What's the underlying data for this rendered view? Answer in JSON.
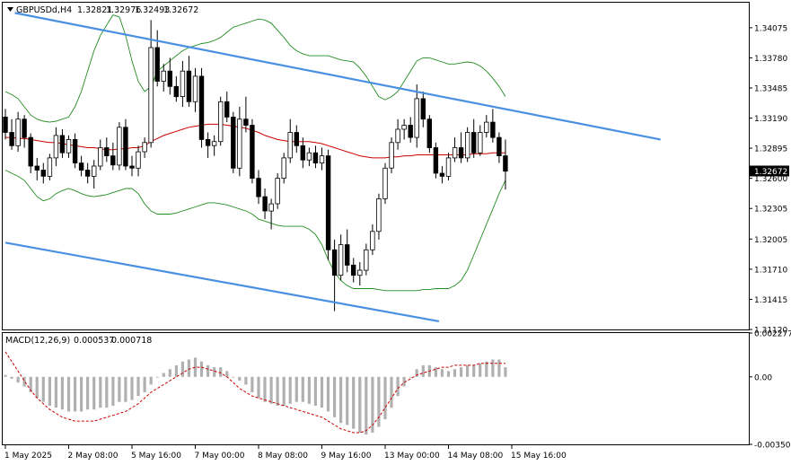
{
  "header": {
    "symbol": "GBPUSDd,H4",
    "open": "1.32821",
    "high": "1.32976",
    "low": "1.32493",
    "close": "1.32672"
  },
  "macd": {
    "label": "MACD(12,26,9)",
    "main": "0.000537",
    "signal": "0.000718"
  },
  "current_price_label": "1.32672",
  "chart_data": [
    {
      "type": "candlestick",
      "title": "GBPUSDd,H4",
      "price_axis_ticks": [
        1.34075,
        1.3378,
        1.33485,
        1.3319,
        1.32895,
        1.326,
        1.32305,
        1.32005,
        1.3171,
        1.31415,
        1.3112
      ],
      "price_axis_labels": [
        "1.34075",
        "1.33780",
        "1.33485",
        "1.33190",
        "1.32895",
        "1.32600",
        "1.32305",
        "1.32005",
        "1.31710",
        "1.31415",
        "1.31120"
      ],
      "ylim": [
        1.3112,
        1.3432
      ],
      "time_labels": [
        "1 May 2025",
        "2 May 08:00",
        "5 May 16:00",
        "7 May 00:00",
        "8 May 08:00",
        "9 May 16:00",
        "13 May 00:00",
        "14 May 08:00",
        "15 May 16:00"
      ],
      "time_label_bar_index": [
        0,
        10,
        20,
        30,
        40,
        50,
        60,
        70,
        80
      ],
      "candles_ohlc": [
        [
          1.332,
          1.3328,
          1.3298,
          1.3305
        ],
        [
          1.3305,
          1.3318,
          1.3288,
          1.3292
        ],
        [
          1.3292,
          1.3325,
          1.3286,
          1.3318
        ],
        [
          1.3318,
          1.3322,
          1.329,
          1.33
        ],
        [
          1.33,
          1.3304,
          1.3265,
          1.3272
        ],
        [
          1.3272,
          1.328,
          1.3258,
          1.3268
        ],
        [
          1.3268,
          1.3275,
          1.3255,
          1.3262
        ],
        [
          1.3262,
          1.3284,
          1.3258,
          1.328
        ],
        [
          1.328,
          1.331,
          1.3272,
          1.3302
        ],
        [
          1.3302,
          1.3308,
          1.328,
          1.3285
        ],
        [
          1.3285,
          1.3302,
          1.328,
          1.3298
        ],
        [
          1.3298,
          1.3304,
          1.327,
          1.3275
        ],
        [
          1.3275,
          1.3282,
          1.3262,
          1.3268
        ],
        [
          1.3268,
          1.3275,
          1.3255,
          1.3262
        ],
        [
          1.3262,
          1.3278,
          1.325,
          1.3272
        ],
        [
          1.3272,
          1.3298,
          1.3268,
          1.329
        ],
        [
          1.329,
          1.33,
          1.3276,
          1.3282
        ],
        [
          1.3282,
          1.3295,
          1.3268,
          1.3273
        ],
        [
          1.3273,
          1.3315,
          1.3268,
          1.331
        ],
        [
          1.331,
          1.3318,
          1.3268,
          1.3272
        ],
        [
          1.3272,
          1.3282,
          1.3262,
          1.327
        ],
        [
          1.327,
          1.3292,
          1.3262,
          1.3286
        ],
        [
          1.3286,
          1.33,
          1.328,
          1.3295
        ],
        [
          1.3295,
          1.3415,
          1.329,
          1.3388
        ],
        [
          1.3388,
          1.3405,
          1.335,
          1.3355
        ],
        [
          1.3355,
          1.3372,
          1.3345,
          1.3365
        ],
        [
          1.3365,
          1.3378,
          1.3342,
          1.335
        ],
        [
          1.335,
          1.336,
          1.3335,
          1.334
        ],
        [
          1.334,
          1.3375,
          1.333,
          1.3365
        ],
        [
          1.3365,
          1.338,
          1.333,
          1.3335
        ],
        [
          1.3335,
          1.3368,
          1.3325,
          1.336
        ],
        [
          1.336,
          1.3368,
          1.329,
          1.3298
        ],
        [
          1.3298,
          1.3305,
          1.328,
          1.3292
        ],
        [
          1.3292,
          1.3302,
          1.3282,
          1.3296
        ],
        [
          1.3296,
          1.334,
          1.3292,
          1.3335
        ],
        [
          1.3335,
          1.3345,
          1.3315,
          1.332
        ],
        [
          1.332,
          1.3325,
          1.3265,
          1.327
        ],
        [
          1.327,
          1.333,
          1.3262,
          1.3318
        ],
        [
          1.3318,
          1.334,
          1.3305,
          1.3312
        ],
        [
          1.3312,
          1.3318,
          1.3255,
          1.326
        ],
        [
          1.326,
          1.3268,
          1.3235,
          1.3242
        ],
        [
          1.3242,
          1.325,
          1.322,
          1.3228
        ],
        [
          1.3228,
          1.324,
          1.321,
          1.3235
        ],
        [
          1.3235,
          1.3265,
          1.323,
          1.326
        ],
        [
          1.326,
          1.3285,
          1.3255,
          1.328
        ],
        [
          1.328,
          1.3318,
          1.3275,
          1.3305
        ],
        [
          1.3305,
          1.3312,
          1.3285,
          1.3292
        ],
        [
          1.3292,
          1.33,
          1.327,
          1.3278
        ],
        [
          1.3278,
          1.329,
          1.3272,
          1.3285
        ],
        [
          1.3285,
          1.3292,
          1.327,
          1.3275
        ],
        [
          1.3275,
          1.329,
          1.3268,
          1.3282
        ],
        [
          1.3282,
          1.3288,
          1.318,
          1.319
        ],
        [
          1.319,
          1.32,
          1.313,
          1.3165
        ],
        [
          1.3165,
          1.3205,
          1.316,
          1.3195
        ],
        [
          1.3195,
          1.321,
          1.3168,
          1.3175
        ],
        [
          1.3175,
          1.3182,
          1.3158,
          1.3165
        ],
        [
          1.3165,
          1.3178,
          1.3155,
          1.317
        ],
        [
          1.317,
          1.3196,
          1.3165,
          1.319
        ],
        [
          1.319,
          1.3215,
          1.3185,
          1.3208
        ],
        [
          1.3208,
          1.3245,
          1.32,
          1.324
        ],
        [
          1.324,
          1.3275,
          1.3235,
          1.327
        ],
        [
          1.327,
          1.33,
          1.3265,
          1.3295
        ],
        [
          1.3295,
          1.3318,
          1.3288,
          1.3308
        ],
        [
          1.3308,
          1.3318,
          1.3298,
          1.3312
        ],
        [
          1.3312,
          1.332,
          1.3295,
          1.33
        ],
        [
          1.33,
          1.3352,
          1.329,
          1.3338
        ],
        [
          1.3338,
          1.3345,
          1.331,
          1.3318
        ],
        [
          1.3318,
          1.3322,
          1.3285,
          1.329
        ],
        [
          1.329,
          1.3295,
          1.326,
          1.3265
        ],
        [
          1.3265,
          1.3272,
          1.3255,
          1.3262
        ],
        [
          1.3262,
          1.3285,
          1.3258,
          1.328
        ],
        [
          1.328,
          1.33,
          1.3276,
          1.329
        ],
        [
          1.329,
          1.3305,
          1.3275,
          1.328
        ],
        [
          1.328,
          1.331,
          1.3276,
          1.3305
        ],
        [
          1.3305,
          1.3318,
          1.328,
          1.3285
        ],
        [
          1.3285,
          1.3312,
          1.3282,
          1.3305
        ],
        [
          1.3305,
          1.3322,
          1.33,
          1.3315
        ],
        [
          1.3315,
          1.3328,
          1.3295,
          1.33
        ],
        [
          1.33,
          1.3305,
          1.3275,
          1.3282
        ],
        [
          1.3282,
          1.3298,
          1.3249,
          1.3267
        ]
      ],
      "moving_average": [
        1.33,
        1.33,
        1.3299,
        1.3299,
        1.3298,
        1.3297,
        1.3296,
        1.3295,
        1.3295,
        1.3294,
        1.3293,
        1.3292,
        1.3291,
        1.329,
        1.329,
        1.3289,
        1.3288,
        1.3288,
        1.3289,
        1.3289,
        1.329,
        1.329,
        1.3292,
        1.3296,
        1.3299,
        1.3302,
        1.3304,
        1.3306,
        1.3308,
        1.331,
        1.3311,
        1.3312,
        1.3313,
        1.3313,
        1.3313,
        1.3312,
        1.3311,
        1.331,
        1.3309,
        1.3307,
        1.3305,
        1.3302,
        1.33,
        1.3298,
        1.3297,
        1.3296,
        1.3296,
        1.3296,
        1.3296,
        1.3295,
        1.3294,
        1.3292,
        1.329,
        1.3288,
        1.3286,
        1.3284,
        1.3282,
        1.3281,
        1.328,
        1.328,
        1.328,
        1.3281,
        1.3281,
        1.3282,
        1.3282,
        1.3283,
        1.3283,
        1.3283,
        1.3283,
        1.3283,
        1.3283,
        1.3283,
        1.3283,
        1.3283,
        1.3284,
        1.3284,
        1.3284,
        1.3285,
        1.3285,
        1.3285
      ],
      "bollinger_upper": [
        1.3345,
        1.3342,
        1.3338,
        1.333,
        1.3322,
        1.3318,
        1.3316,
        1.3315,
        1.3316,
        1.3318,
        1.332,
        1.333,
        1.3345,
        1.3365,
        1.3385,
        1.34,
        1.341,
        1.342,
        1.3418,
        1.34,
        1.3375,
        1.3355,
        1.3345,
        1.335,
        1.3365,
        1.337,
        1.3375,
        1.338,
        1.3385,
        1.3388,
        1.339,
        1.3392,
        1.3393,
        1.3395,
        1.3398,
        1.3403,
        1.3408,
        1.341,
        1.3412,
        1.3414,
        1.3416,
        1.3415,
        1.3412,
        1.3405,
        1.3398,
        1.339,
        1.3385,
        1.3382,
        1.338,
        1.338,
        1.338,
        1.338,
        1.3378,
        1.3376,
        1.3375,
        1.3374,
        1.3368,
        1.336,
        1.335,
        1.334,
        1.3337,
        1.334,
        1.3345,
        1.3355,
        1.3365,
        1.3375,
        1.3378,
        1.3378,
        1.3376,
        1.3374,
        1.3372,
        1.3372,
        1.3373,
        1.3374,
        1.3373,
        1.337,
        1.3365,
        1.3358,
        1.335,
        1.334
      ],
      "bollinger_lower": [
        1.3268,
        1.3265,
        1.3262,
        1.3258,
        1.325,
        1.3242,
        1.3238,
        1.324,
        1.3245,
        1.3248,
        1.325,
        1.3248,
        1.3245,
        1.3243,
        1.3242,
        1.3243,
        1.3244,
        1.3246,
        1.3248,
        1.325,
        1.325,
        1.3245,
        1.3235,
        1.3228,
        1.3225,
        1.3225,
        1.3225,
        1.3226,
        1.3228,
        1.323,
        1.3232,
        1.3234,
        1.3236,
        1.3236,
        1.3235,
        1.3234,
        1.3232,
        1.323,
        1.3228,
        1.3225,
        1.322,
        1.3218,
        1.3216,
        1.3214,
        1.3213,
        1.3213,
        1.3213,
        1.3213,
        1.321,
        1.3205,
        1.3195,
        1.318,
        1.3168,
        1.316,
        1.3155,
        1.3152,
        1.3152,
        1.3152,
        1.3152,
        1.3151,
        1.315,
        1.315,
        1.315,
        1.315,
        1.315,
        1.315,
        1.3151,
        1.3151,
        1.3152,
        1.3152,
        1.3152,
        1.3155,
        1.316,
        1.317,
        1.3185,
        1.32,
        1.3215,
        1.323,
        1.3245,
        1.3258
      ],
      "channel_upper_line": {
        "start": [
          1.5,
          1.3422
        ],
        "end": [
          103.5,
          1.3298
        ]
      },
      "channel_lower_line": {
        "start": [
          0,
          1.3197
        ],
        "end": [
          68.5,
          1.312
        ]
      },
      "channel_mid_line": {
        "start": [
          7.5,
          1.3422
        ],
        "end": [
          74.5,
          1.3356
        ]
      },
      "macd_axis_labels": [
        "0.002277",
        "0.00",
        "-0.003508"
      ],
      "macd_ylim": [
        -0.003508,
        0.002277
      ],
      "macd_histogram": [
        0.0001,
        -0.0001,
        -0.0003,
        -0.0005,
        -0.0008,
        -0.0011,
        -0.0013,
        -0.0015,
        -0.0016,
        -0.0017,
        -0.0018,
        -0.0018,
        -0.0018,
        -0.0017,
        -0.0017,
        -0.0016,
        -0.0016,
        -0.0015,
        -0.0013,
        -0.0013,
        -0.0012,
        -0.001,
        -0.0008,
        -0.0004,
        0.0,
        0.0002,
        0.0004,
        0.0006,
        0.0008,
        0.0009,
        0.001,
        0.0008,
        0.0006,
        0.0005,
        0.0005,
        0.0003,
        0.0,
        -0.0002,
        -0.0004,
        -0.0008,
        -0.0011,
        -0.0013,
        -0.0014,
        -0.0015,
        -0.0015,
        -0.0014,
        -0.0013,
        -0.0013,
        -0.0014,
        -0.0015,
        -0.0016,
        -0.0018,
        -0.0021,
        -0.0024,
        -0.0025,
        -0.0027,
        -0.0029,
        -0.003,
        -0.0029,
        -0.0026,
        -0.0022,
        -0.0016,
        -0.001,
        -0.0005,
        0.0,
        0.0004,
        0.0006,
        0.0006,
        0.0005,
        0.0004,
        0.0003,
        0.0004,
        0.0005,
        0.0006,
        0.0006,
        0.0007,
        0.0008,
        0.0009,
        0.0009,
        0.0005
      ],
      "macd_signal": [
        0.0013,
        0.0008,
        0.0003,
        -0.0002,
        -0.0007,
        -0.0011,
        -0.0014,
        -0.0017,
        -0.0019,
        -0.0021,
        -0.0022,
        -0.0023,
        -0.0023,
        -0.0023,
        -0.0023,
        -0.0022,
        -0.0021,
        -0.002,
        -0.0019,
        -0.0018,
        -0.0016,
        -0.0014,
        -0.0011,
        -0.0008,
        -0.0006,
        -0.0004,
        -0.0002,
        0.0,
        0.0002,
        0.0004,
        0.0005,
        0.0005,
        0.0004,
        0.0003,
        0.0002,
        0.0,
        -0.0003,
        -0.0006,
        -0.0008,
        -0.001,
        -0.0011,
        -0.0012,
        -0.0013,
        -0.0014,
        -0.0015,
        -0.0016,
        -0.0017,
        -0.0018,
        -0.0019,
        -0.002,
        -0.0021,
        -0.0023,
        -0.0025,
        -0.0027,
        -0.0028,
        -0.0029,
        -0.0029,
        -0.0028,
        -0.0025,
        -0.0021,
        -0.0016,
        -0.0011,
        -0.0006,
        -0.0003,
        -0.0001,
        0.0001,
        0.0002,
        0.0003,
        0.0004,
        0.0005,
        0.0005,
        0.0006,
        0.0006,
        0.0006,
        0.0006,
        0.0007,
        0.0007,
        0.0007,
        0.0007,
        0.0007
      ]
    }
  ],
  "colors": {
    "candle_bull": "#ffffff",
    "candle_bear": "#000000",
    "candle_outline": "#000000",
    "bollinger": "#228b22",
    "moving_average": "#cc0000",
    "channel": "#4a90e2",
    "macd_hist": "#b0b0b0",
    "macd_signal": "#cc0000",
    "price_tag_bg": "#000000"
  }
}
